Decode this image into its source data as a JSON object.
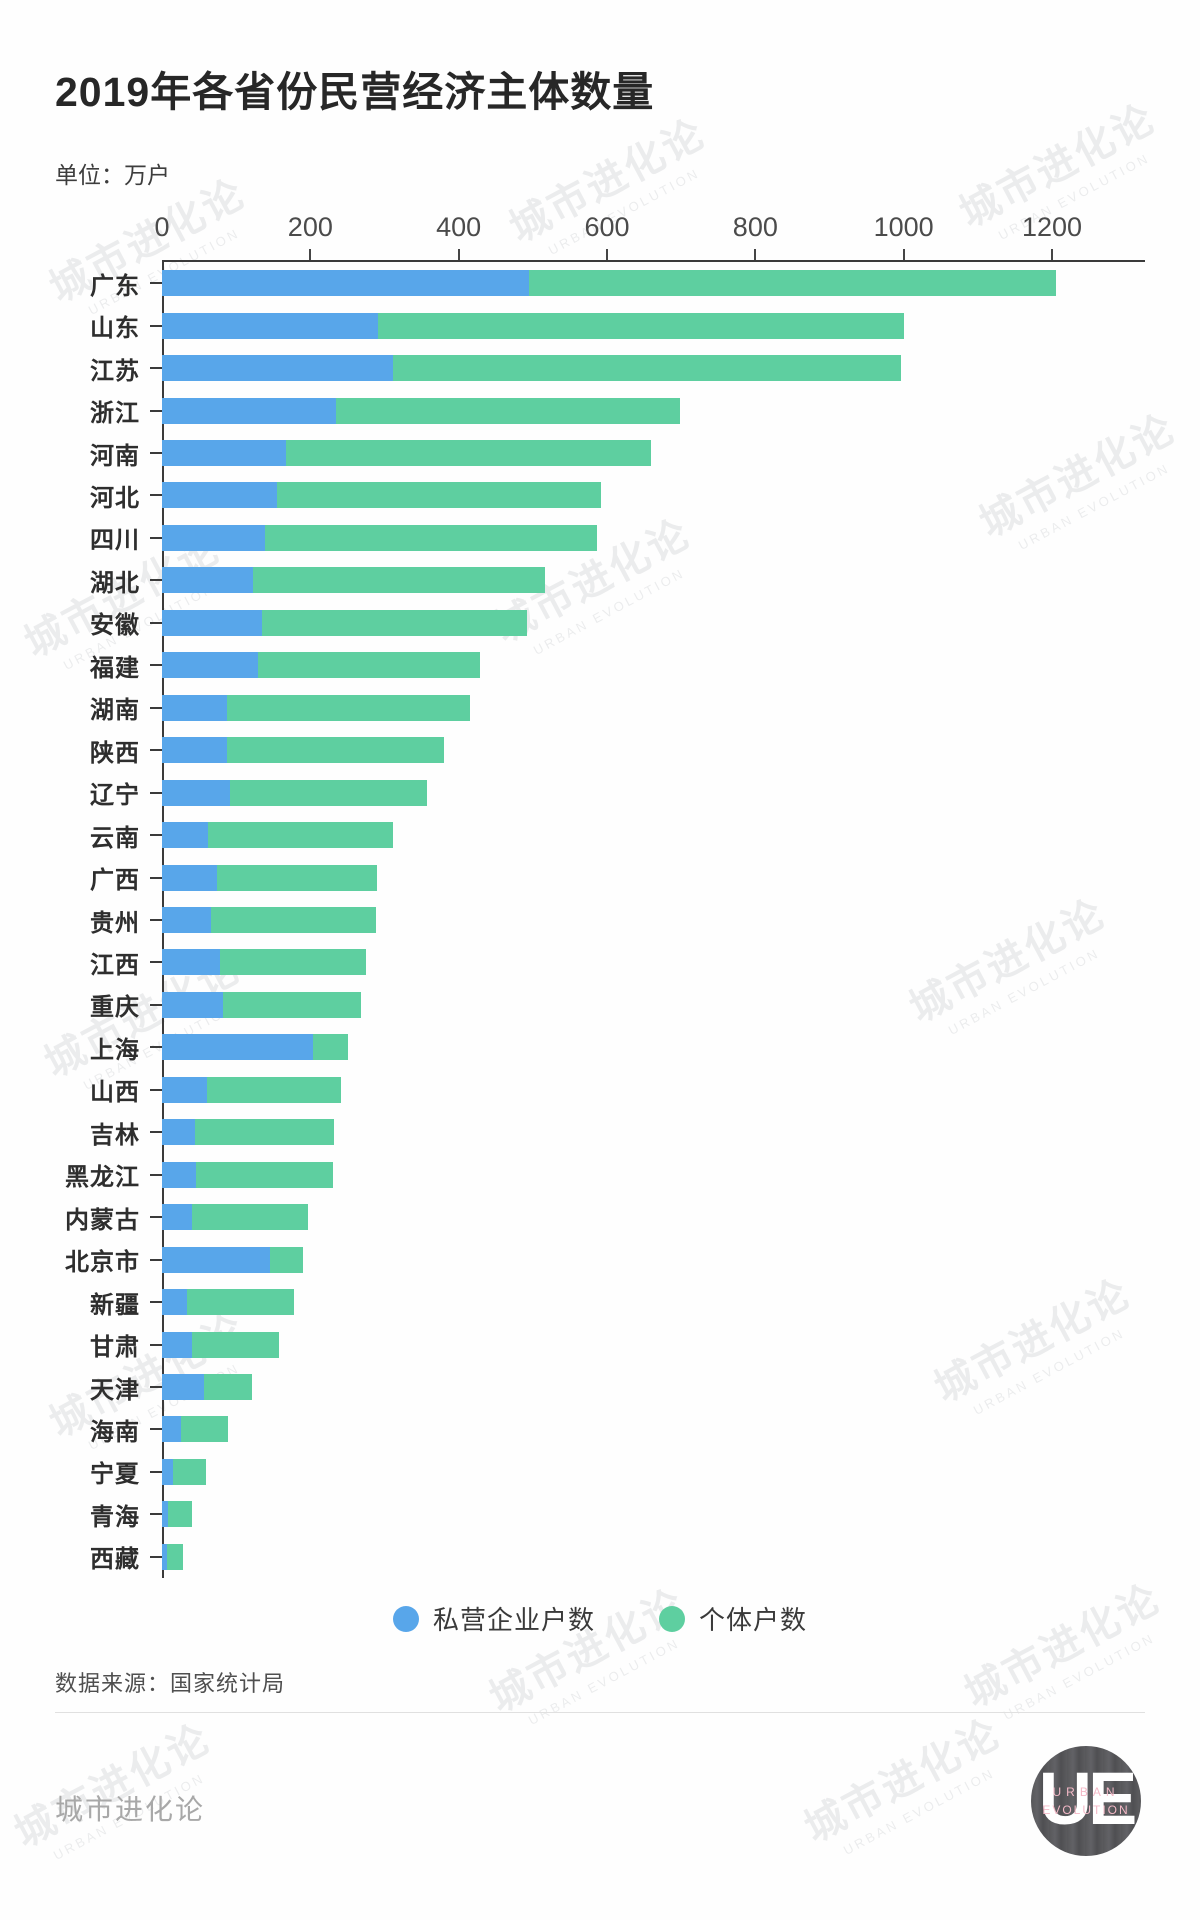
{
  "title": "2019年各省份民营经济主体数量",
  "unit_label": "单位：万户",
  "source_label": "数据来源：国家统计局",
  "footer_brand": "城市进化论",
  "watermark": {
    "cn": "城市进化论",
    "en": "URBAN EVOLUTION"
  },
  "logo": {
    "monogram": "UE",
    "line1": "URBAN",
    "line2": "EVOLUTION"
  },
  "colors": {
    "private": "#58a6ea",
    "individual": "#5ecfa0",
    "axis": "#3a3a3a",
    "pink": "#f4b9c7"
  },
  "legend": [
    {
      "label": "私营企业户数",
      "color": "#58a6ea"
    },
    {
      "label": "个体户数",
      "color": "#5ecfa0"
    }
  ],
  "chart_data": {
    "type": "bar",
    "orientation": "horizontal",
    "stacked": true,
    "title": "2019年各省份民营经济主体数量",
    "unit": "万户",
    "x_ticks": [
      0,
      200,
      400,
      600,
      800,
      1000,
      1200
    ],
    "xlim": [
      0,
      1240
    ],
    "grid": false,
    "legend_position": "bottom",
    "categories": [
      "广东",
      "山东",
      "江苏",
      "浙江",
      "河南",
      "河北",
      "四川",
      "湖北",
      "安徽",
      "福建",
      "湖南",
      "陕西",
      "辽宁",
      "云南",
      "广西",
      "贵州",
      "江西",
      "重庆",
      "上海",
      "山西",
      "吉林",
      "黑龙江",
      "内蒙古",
      "北京市",
      "新疆",
      "甘肃",
      "天津",
      "海南",
      "宁夏",
      "青海",
      "西藏"
    ],
    "series": [
      {
        "name": "私营企业户数",
        "values": [
          495,
          291,
          312,
          235,
          167,
          155,
          139,
          123,
          135,
          130,
          88,
          87,
          91,
          62,
          74,
          66,
          78,
          82,
          203,
          61,
          44,
          46,
          41,
          146,
          34,
          40,
          57,
          26,
          15,
          8,
          7
        ]
      },
      {
        "name": "个体户数",
        "values": [
          710,
          709,
          685,
          463,
          493,
          437,
          447,
          394,
          357,
          299,
          327,
          293,
          266,
          250,
          216,
          223,
          197,
          186,
          48,
          180,
          188,
          185,
          156,
          44,
          144,
          118,
          64,
          63,
          44,
          33,
          22
        ]
      }
    ]
  }
}
